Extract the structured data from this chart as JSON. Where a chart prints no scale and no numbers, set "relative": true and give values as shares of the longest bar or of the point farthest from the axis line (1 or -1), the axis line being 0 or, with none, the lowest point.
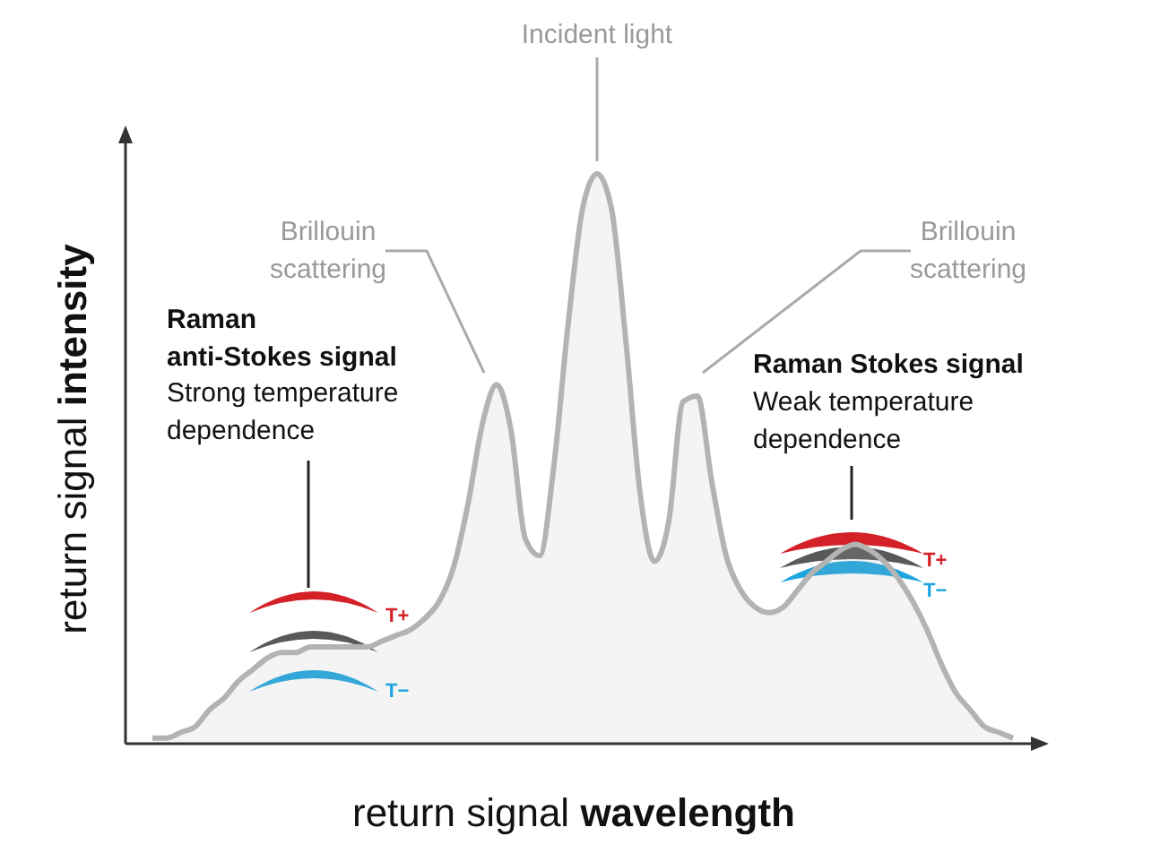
{
  "chart_data": {
    "type": "area",
    "relative": true,
    "xlabel": "return signal wavelength",
    "ylabel": "return signal intensity",
    "categories": [
      null,
      null,
      null,
      null,
      null,
      null,
      null,
      null,
      null,
      null,
      null,
      null,
      null,
      null,
      null,
      null,
      null,
      null,
      null,
      null,
      null,
      null,
      null,
      null,
      null,
      null,
      null,
      null,
      null,
      null,
      null,
      null,
      null,
      null,
      null,
      null,
      null,
      null,
      null,
      null,
      null,
      null,
      null,
      null,
      null,
      null,
      null,
      null,
      null,
      null,
      null,
      null,
      null,
      null,
      null,
      null,
      null,
      null,
      null,
      null,
      null
    ],
    "series": [
      {
        "color": "#b3b3b3",
        "values": [
          0.01,
          0.01,
          0.02,
          0.03,
          0.06,
          0.08,
          0.11,
          0.13,
          0.15,
          0.16,
          0.16,
          0.17,
          0.17,
          0.17,
          0.17,
          0.17,
          0.18,
          0.19,
          0.2,
          0.22,
          0.25,
          0.31,
          0.42,
          0.56,
          0.63,
          0.55,
          0.36,
          0.33,
          0.49,
          0.74,
          0.94,
          1,
          0.94,
          0.71,
          0.44,
          0.32,
          0.39,
          0.6,
          0.61,
          0.46,
          0.33,
          0.27,
          0.24,
          0.23,
          0.24,
          0.27,
          0.3,
          0.32,
          0.34,
          0.35,
          0.34,
          0.32,
          0.29,
          0.25,
          0.2,
          0.14,
          0.09,
          0.06,
          0.03,
          0.02,
          0.01
        ]
      }
    ],
    "annotations": [
      "Incident light",
      "Brillouin scattering",
      "Brillouin scattering",
      "Raman anti-Stokes signal",
      "Strong temperature dependence",
      "Raman Stokes signal",
      "Weak temperature dependence",
      "T+",
      "T−",
      "T+",
      "T−"
    ]
  }
}
